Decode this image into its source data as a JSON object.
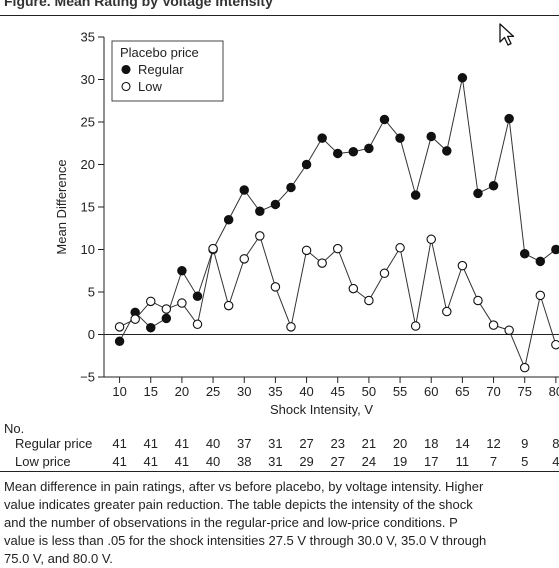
{
  "figure_title": "Figure. Mean Rating by Voltage Intensity",
  "chart_data": {
    "type": "line",
    "xlabel": "Shock Intensity, V",
    "ylabel": "Mean Difference",
    "xlim": [
      7.5,
      80
    ],
    "ylim": [
      -5,
      35
    ],
    "x_ticks": [
      10,
      15,
      20,
      25,
      30,
      35,
      40,
      45,
      50,
      55,
      60,
      65,
      70,
      75,
      80
    ],
    "x_tick_labels": [
      "10",
      "15",
      "20",
      "25",
      "30",
      "35",
      "40",
      "45",
      "50",
      "55",
      "60",
      "65",
      "70",
      "75",
      "80"
    ],
    "y_ticks": [
      -5,
      0,
      5,
      10,
      15,
      20,
      25,
      30,
      35
    ],
    "y_tick_labels": [
      "−5",
      "0",
      "5",
      "10",
      "15",
      "20",
      "25",
      "30",
      "35"
    ],
    "grid": false,
    "legend": {
      "title": "Placebo price",
      "placement": "top-left"
    },
    "x": [
      10,
      12.5,
      15,
      17.5,
      20,
      22.5,
      25,
      27.5,
      30,
      32.5,
      35,
      37.5,
      40,
      42.5,
      45,
      47.5,
      50,
      52.5,
      55,
      57.5,
      60,
      62.5,
      65,
      67.5,
      70,
      72.5,
      75,
      77.5,
      80
    ],
    "series": [
      {
        "name": "Regular",
        "marker": "filled-circle",
        "color": "#111111",
        "values": [
          -0.8,
          2.6,
          0.8,
          1.9,
          7.5,
          4.5,
          10.0,
          13.5,
          17.0,
          14.5,
          15.3,
          17.3,
          20.0,
          23.1,
          21.3,
          21.5,
          21.9,
          25.3,
          23.1,
          16.4,
          23.3,
          21.6,
          30.2,
          16.6,
          17.5,
          25.4,
          9.5,
          8.6,
          10.0
        ]
      },
      {
        "name": "Low",
        "marker": "open-circle",
        "color": "#111111",
        "values": [
          0.9,
          1.8,
          3.9,
          3.0,
          3.7,
          1.2,
          10.1,
          3.4,
          8.9,
          11.6,
          5.6,
          0.9,
          9.9,
          8.4,
          10.1,
          5.4,
          4.0,
          7.2,
          10.2,
          1.0,
          11.2,
          2.7,
          8.1,
          4.0,
          1.1,
          0.5,
          -3.9,
          4.6,
          -1.2
        ]
      }
    ]
  },
  "table": {
    "heading": "No.",
    "rows": [
      {
        "label": "Regular price",
        "values": [
          "41",
          "41",
          "41",
          "40",
          "37",
          "31",
          "27",
          "23",
          "21",
          "20",
          "18",
          "14",
          "12",
          "9",
          "8"
        ]
      },
      {
        "label": "Low price",
        "values": [
          "41",
          "41",
          "41",
          "40",
          "38",
          "31",
          "29",
          "27",
          "24",
          "19",
          "17",
          "11",
          "7",
          "5",
          "4"
        ]
      }
    ]
  },
  "caption": [
    "Mean difference in pain ratings, after vs before placebo, by voltage intensity. Higher",
    "value indicates greater pain reduction. The table depicts the intensity of the shock",
    "and the number of observations in the regular-price and low-price conditions. P",
    "value is less than .05 for the shock intensities 27.5 V through 30.0 V, 35.0 V through",
    "75.0 V, and 80.0 V."
  ]
}
